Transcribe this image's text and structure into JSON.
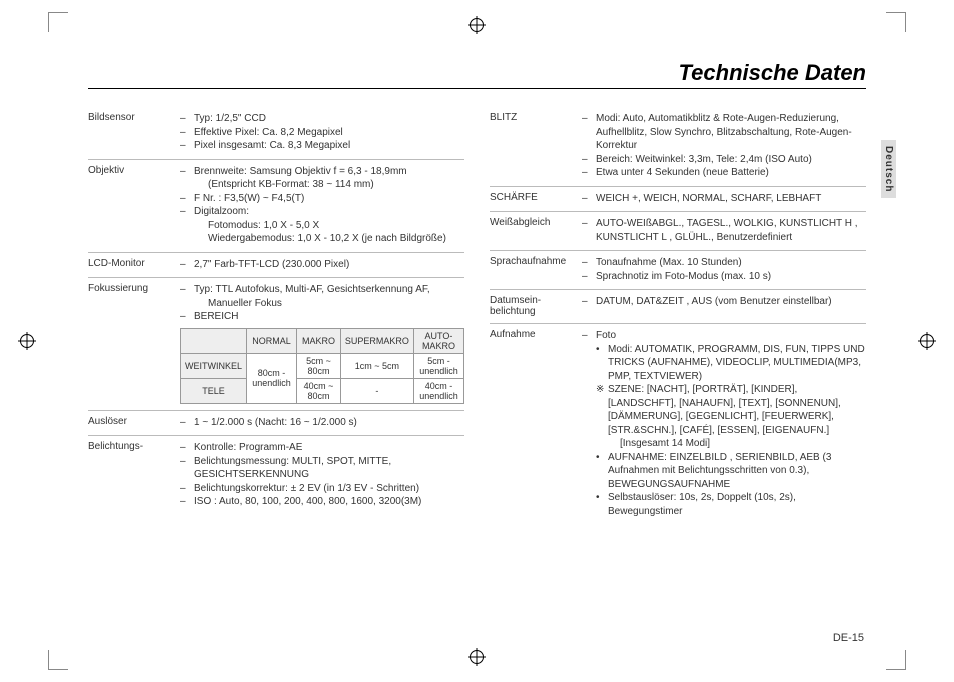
{
  "page": {
    "title": "Technische Daten",
    "side_tab": "Deutsch",
    "page_number": "DE-15"
  },
  "left_specs": [
    {
      "label": "Bildsensor",
      "lines": [
        {
          "dash": "–",
          "text": "Typ: 1/2,5\" CCD"
        },
        {
          "dash": "–",
          "text": "Effektive Pixel: Ca. 8,2 Megapixel"
        },
        {
          "dash": "–",
          "text": "Pixel insgesamt: Ca. 8,3 Megapixel"
        }
      ]
    },
    {
      "label": "Objektiv",
      "lines": [
        {
          "dash": "–",
          "text": "Brennweite: Samsung Objektiv f = 6,3 - 18,9mm"
        },
        {
          "indent": true,
          "text": "(Entspricht KB-Format: 38 ~ 114 mm)"
        },
        {
          "dash": "–",
          "text": "F Nr. : F3,5(W) ~ F4,5(T)"
        },
        {
          "dash": "–",
          "text": "Digitalzoom:"
        },
        {
          "indent": true,
          "text": "Fotomodus: 1,0 X - 5,0 X"
        },
        {
          "indent": true,
          "text": "Wiedergabemodus: 1,0 X - 10,2 X (je nach Bildgröße)"
        }
      ]
    },
    {
      "label": "LCD-Monitor",
      "lines": [
        {
          "dash": "–",
          "text": "2,7\" Farb-TFT-LCD (230.000 Pixel)"
        }
      ]
    },
    {
      "label": "Fokussierung",
      "lines": [
        {
          "dash": "–",
          "text": "Typ: TTL Autofokus, Multi-AF, Gesichtserkennung AF,"
        },
        {
          "indent": true,
          "text": "Manueller Fokus"
        },
        {
          "dash": "–",
          "text": "BEREICH"
        }
      ],
      "table": {
        "headers": [
          "",
          "NORMAL",
          "MAKRO",
          "SUPERMAKRO",
          "AUTO-MAKRO"
        ],
        "rows": [
          [
            "WEITWINKEL",
            "80cm - unendlich",
            "5cm ~ 80cm",
            "1cm ~ 5cm",
            "5cm - unendlich"
          ],
          [
            "TELE",
            "80cm - unendlich",
            "40cm ~ 80cm",
            "-",
            "40cm - unendlich"
          ]
        ],
        "merge_normal": true
      }
    },
    {
      "label": "Auslöser",
      "lines": [
        {
          "dash": "–",
          "text": "1 ~ 1/2.000 s (Nacht: 16 ~ 1/2.000 s)"
        }
      ]
    },
    {
      "label": "Belichtungs-",
      "lines": [
        {
          "dash": "–",
          "text": "Kontrolle: Programm-AE"
        },
        {
          "dash": "–",
          "text": "Belichtungsmessung: MULTI, SPOT, MITTE,"
        },
        {
          "indent2": true,
          "text": "GESICHTSERKENNUNG"
        },
        {
          "dash": "–",
          "text": "Belichtungskorrektur: ± 2 EV (in 1/3 EV - Schritten)"
        },
        {
          "dash": "–",
          "text": "ISO : Auto, 80, 100, 200, 400, 800, 1600, 3200(3M)"
        }
      ],
      "noborder": true
    }
  ],
  "right_specs": [
    {
      "label": "BLITZ",
      "lines": [
        {
          "dash": "–",
          "text": "Modi: Auto, Automatikblitz & Rote-Augen-Reduzierung, Aufhellblitz, Slow Synchro, Blitzabschaltung, Rote-Augen-Korrektur"
        },
        {
          "dash": "–",
          "text": "Bereich: Weitwinkel: 3,3m, Tele: 2,4m (ISO Auto)"
        },
        {
          "dash": "–",
          "text": "Etwa unter 4 Sekunden (neue Batterie)"
        }
      ]
    },
    {
      "label": "SCHÄRFE",
      "lines": [
        {
          "dash": "–",
          "text": "WEICH +, WEICH, NORMAL, SCHARF, LEBHAFT"
        }
      ]
    },
    {
      "label": "Weißabgleich",
      "lines": [
        {
          "dash": "–",
          "text": "AUTO-WEIßABGL., TAGESL., WOLKIG, KUNSTLICHT H , KUNSTLICHT L , GLÜHL., Benutzerdefiniert"
        }
      ]
    },
    {
      "label": "Sprachaufnahme",
      "lines": [
        {
          "dash": "–",
          "text": " Tonaufnahme (Max. 10 Stunden)"
        },
        {
          "dash": "–",
          "text": "Sprachnotiz im Foto-Modus (max. 10 s)"
        }
      ]
    },
    {
      "label": "Datumsein-belichtung",
      "lines": [
        {
          "dash": "–",
          "text": "DATUM, DAT&ZEIT , AUS (vom Benutzer einstellbar)"
        }
      ]
    },
    {
      "label": "Aufnahme",
      "lines": [
        {
          "dash": "–",
          "text": "Foto"
        },
        {
          "bullet": "•",
          "text": "Modi: AUTOMATIK, PROGRAMM, DIS, FUN, TIPPS UND TRICKS (AUFNAHME), VIDEOCLIP, MULTIMEDIA(MP3, PMP, TEXTVIEWER)"
        },
        {
          "bullet": "※",
          "text": "SZENE: [NACHT], [PORTRÄT], [KINDER], [LANDSCHFT], [NAHAUFN], [TEXT], [SONNENUN], [DÄMMERUNG], [GEGENLICHT], [FEUERWERK], [STR.&SCHN.], [CAFÉ], [ESSEN], [EIGENAUFN.]"
        },
        {
          "deep": true,
          "text": "[Insgesamt 14 Modi]"
        },
        {
          "bullet": "•",
          "text": "AUFNAHME: EINZELBILD , SERIENBILD, AEB (3 Aufnahmen mit Belichtungsschritten von 0.3), BEWEGUNGSAUFNAHME"
        },
        {
          "bullet": "•",
          "text": "Selbstauslöser: 10s, 2s, Doppelt (10s, 2s), Bewegungstimer"
        }
      ],
      "noborder": true
    }
  ]
}
